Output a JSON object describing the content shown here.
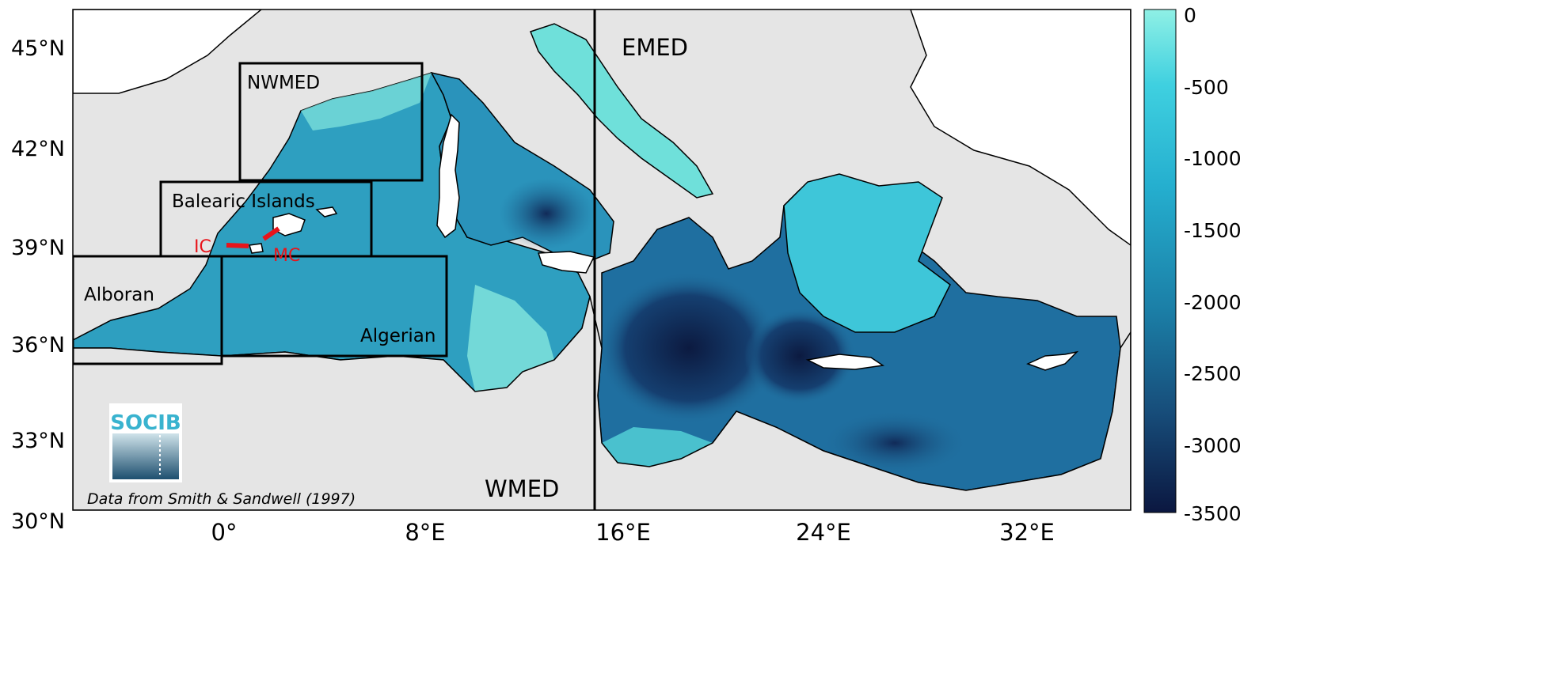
{
  "map": {
    "lat_ticks": [
      "45°N",
      "42°N",
      "39°N",
      "36°N",
      "33°N",
      "30°N"
    ],
    "lon_ticks": [
      "0°",
      "8°E",
      "16°E",
      "24°E",
      "32°E"
    ],
    "regions": {
      "nwmed": "NWMED",
      "balearic": "Balearic Islands",
      "alboran": "Alboran",
      "algerian": "Algerian",
      "emed": "EMED",
      "wmed": "WMED"
    },
    "channels": {
      "ic": "IC",
      "mc": "MC"
    },
    "credit": "Data from Smith & Sandwell (1997)",
    "logo_text": "SOCIB",
    "colors": {
      "land": "#ffffff",
      "outside_sea": "#e5e5e5",
      "shallow": "#7fe9df",
      "mid": "#2aa7bf",
      "deep": "#0e1e46",
      "channel_marker": "#e8141b",
      "socib_blue": "#39b3cf"
    }
  },
  "colorbar": {
    "ticks": [
      "0",
      "-500",
      "-1000",
      "-1500",
      "-2000",
      "-2500",
      "-3000",
      "-3500"
    ],
    "min": -3500,
    "max": 0
  }
}
